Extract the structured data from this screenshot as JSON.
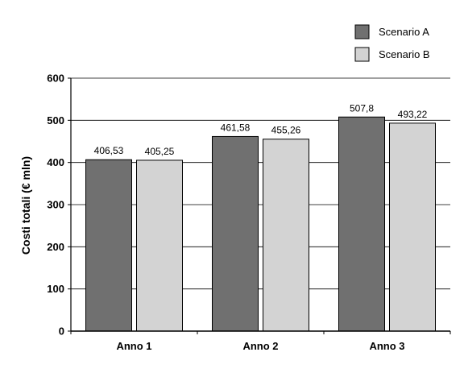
{
  "chart_data": {
    "type": "bar",
    "categories": [
      "Anno 1",
      "Anno 2",
      "Anno 3"
    ],
    "series": [
      {
        "name": "Scenario A",
        "color": "#707070",
        "values": [
          406.53,
          461.58,
          507.8
        ],
        "labels": [
          "406,53",
          "461,58",
          "507,8"
        ]
      },
      {
        "name": "Scenario B",
        "color": "#d3d3d3",
        "values": [
          405.25,
          455.26,
          493.22
        ],
        "labels": [
          "405,25",
          "455,26",
          "493,22"
        ]
      }
    ],
    "title": "",
    "xlabel": "",
    "ylabel": "Costi totali (€ mln)",
    "ylim": [
      0,
      600
    ],
    "yticks": [
      0,
      100,
      200,
      300,
      400,
      500,
      600
    ],
    "grid": true,
    "legend_position": "top-right"
  }
}
